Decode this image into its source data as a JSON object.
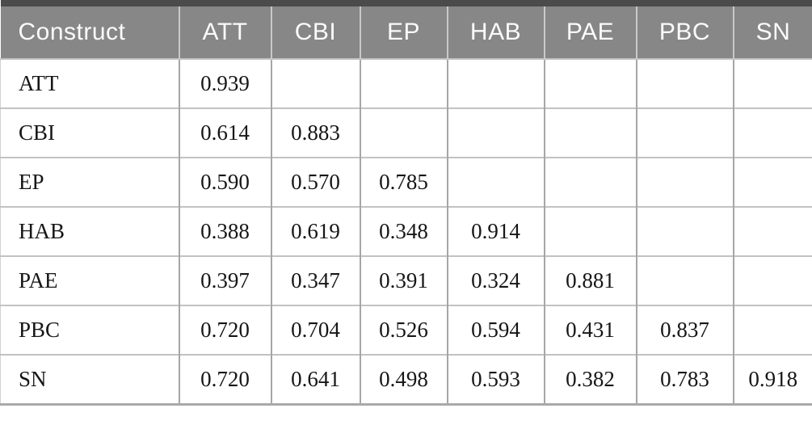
{
  "table": {
    "headers": [
      "Construct",
      "ATT",
      "CBI",
      "EP",
      "HAB",
      "PAE",
      "PBC",
      "SN"
    ],
    "rows": [
      {
        "label": "ATT",
        "values": [
          "0.939",
          "",
          "",
          "",
          "",
          "",
          ""
        ]
      },
      {
        "label": "CBI",
        "values": [
          "0.614",
          "0.883",
          "",
          "",
          "",
          "",
          ""
        ]
      },
      {
        "label": "EP",
        "values": [
          "0.590",
          "0.570",
          "0.785",
          "",
          "",
          "",
          ""
        ]
      },
      {
        "label": "HAB",
        "values": [
          "0.388",
          "0.619",
          "0.348",
          "0.914",
          "",
          "",
          ""
        ]
      },
      {
        "label": "PAE",
        "values": [
          "0.397",
          "0.347",
          "0.391",
          "0.324",
          "0.881",
          "",
          ""
        ]
      },
      {
        "label": "PBC",
        "values": [
          "0.720",
          "0.704",
          "0.526",
          "0.594",
          "0.431",
          "0.837",
          ""
        ]
      },
      {
        "label": "SN",
        "values": [
          "0.720",
          "0.641",
          "0.498",
          "0.593",
          "0.382",
          "0.783",
          "0.918"
        ]
      }
    ]
  },
  "chart_data": {
    "type": "table",
    "title": "",
    "columns": [
      "Construct",
      "ATT",
      "CBI",
      "EP",
      "HAB",
      "PAE",
      "PBC",
      "SN"
    ],
    "rows": [
      [
        "ATT",
        "0.939",
        "",
        "",
        "",
        "",
        "",
        ""
      ],
      [
        "CBI",
        "0.614",
        "0.883",
        "",
        "",
        "",
        "",
        ""
      ],
      [
        "EP",
        "0.590",
        "0.570",
        "0.785",
        "",
        "",
        "",
        ""
      ],
      [
        "HAB",
        "0.388",
        "0.619",
        "0.348",
        "0.914",
        "",
        "",
        ""
      ],
      [
        "PAE",
        "0.397",
        "0.347",
        "0.391",
        "0.324",
        "0.881",
        "",
        ""
      ],
      [
        "PBC",
        "0.720",
        "0.704",
        "0.526",
        "0.594",
        "0.431",
        "0.837",
        ""
      ],
      [
        "SN",
        "0.720",
        "0.641",
        "0.498",
        "0.593",
        "0.382",
        "0.783",
        "0.918"
      ]
    ]
  },
  "colors": {
    "header_background": "#878787",
    "header_text": "#fbfbfb",
    "top_border": "#4b4b4b",
    "bottom_border": "#a9a9a9",
    "row_separator": "#c2c2c2",
    "column_separator": "#a6a6a6",
    "cell_text": "#161616"
  }
}
